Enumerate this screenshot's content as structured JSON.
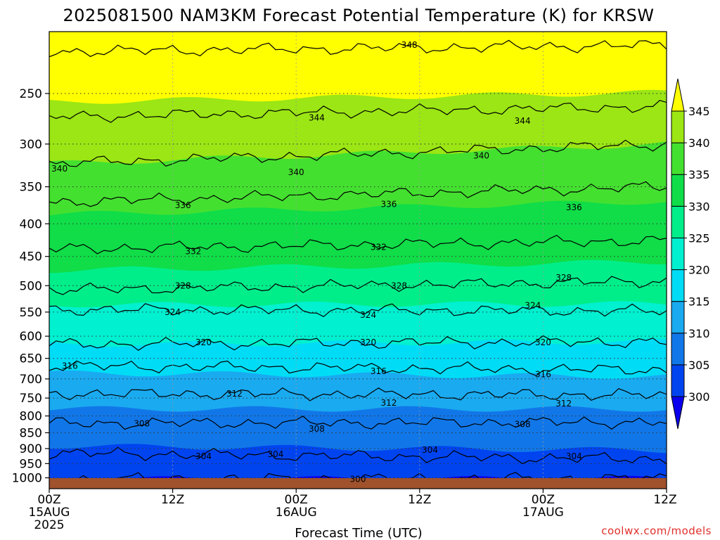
{
  "chart_data": {
    "type": "heatmap",
    "title": "2025081500 NAM3KM Forecast Potential Temperature (K) for KRSW",
    "xlabel": "Forecast Time (UTC)",
    "ylabel": "",
    "credit": "coolwx.com/models",
    "x_ticks": [
      {
        "hour": 0,
        "lines": [
          "00Z",
          "15AUG",
          "2025"
        ]
      },
      {
        "hour": 12,
        "lines": [
          "12Z"
        ]
      },
      {
        "hour": 24,
        "lines": [
          "00Z",
          "16AUG"
        ]
      },
      {
        "hour": 36,
        "lines": [
          "12Z"
        ]
      },
      {
        "hour": 48,
        "lines": [
          "00Z",
          "17AUG"
        ]
      },
      {
        "hour": 60,
        "lines": [
          "12Z"
        ]
      }
    ],
    "xlim": [
      0,
      60
    ],
    "y_scale": "log",
    "ylim": [
      1040,
      200
    ],
    "y_ticks": [
      250,
      300,
      350,
      400,
      450,
      500,
      550,
      600,
      650,
      700,
      750,
      800,
      850,
      900,
      950,
      1000
    ],
    "colorbar": {
      "levels": [
        300,
        305,
        310,
        315,
        320,
        325,
        330,
        335,
        340,
        345
      ],
      "colors": [
        "#0a00ee",
        "#0044f0",
        "#1177e8",
        "#1aaaf0",
        "#00dcf6",
        "#00f0d0",
        "#00ee8a",
        "#10dd48",
        "#44e030",
        "#9be614",
        "#ffff00"
      ],
      "extend": "both"
    },
    "isotherms": [
      {
        "theta": 300,
        "p_start": 1005,
        "p_end": 1003
      },
      {
        "theta": 304,
        "p_start": 915,
        "p_end": 935
      },
      {
        "theta": 308,
        "p_start": 822,
        "p_end": 818
      },
      {
        "theta": 312,
        "p_start": 738,
        "p_end": 742
      },
      {
        "theta": 316,
        "p_start": 668,
        "p_end": 678
      },
      {
        "theta": 320,
        "p_start": 618,
        "p_end": 612
      },
      {
        "theta": 324,
        "p_start": 545,
        "p_end": 548
      },
      {
        "theta": 328,
        "p_start": 508,
        "p_end": 492
      },
      {
        "theta": 332,
        "p_start": 438,
        "p_end": 425
      },
      {
        "theta": 336,
        "p_start": 370,
        "p_end": 350
      },
      {
        "theta": 340,
        "p_start": 322,
        "p_end": 300
      },
      {
        "theta": 344,
        "p_start": 272,
        "p_end": 262
      },
      {
        "theta": 348,
        "p_start": 215,
        "p_end": 210
      }
    ],
    "contour_labels": [
      {
        "text": "348",
        "hour": 35,
        "p": 210
      },
      {
        "text": "344",
        "hour": 26,
        "p": 273
      },
      {
        "text": "344",
        "hour": 46,
        "p": 276
      },
      {
        "text": "340",
        "hour": 1,
        "p": 328
      },
      {
        "text": "340",
        "hour": 24,
        "p": 332
      },
      {
        "text": "340",
        "hour": 42,
        "p": 313
      },
      {
        "text": "336",
        "hour": 13,
        "p": 374
      },
      {
        "text": "336",
        "hour": 33,
        "p": 373
      },
      {
        "text": "336",
        "hour": 51,
        "p": 377
      },
      {
        "text": "332",
        "hour": 14,
        "p": 442
      },
      {
        "text": "332",
        "hour": 32,
        "p": 435
      },
      {
        "text": "328",
        "hour": 13,
        "p": 500
      },
      {
        "text": "328",
        "hour": 34,
        "p": 500
      },
      {
        "text": "328",
        "hour": 50,
        "p": 486
      },
      {
        "text": "324",
        "hour": 12,
        "p": 550
      },
      {
        "text": "324",
        "hour": 31,
        "p": 556
      },
      {
        "text": "324",
        "hour": 47,
        "p": 537
      },
      {
        "text": "320",
        "hour": 15,
        "p": 614
      },
      {
        "text": "320",
        "hour": 31,
        "p": 614
      },
      {
        "text": "320",
        "hour": 48,
        "p": 614
      },
      {
        "text": "316",
        "hour": 2,
        "p": 668
      },
      {
        "text": "316",
        "hour": 32,
        "p": 681
      },
      {
        "text": "316",
        "hour": 48,
        "p": 689
      },
      {
        "text": "312",
        "hour": 18,
        "p": 738
      },
      {
        "text": "312",
        "hour": 33,
        "p": 763
      },
      {
        "text": "312",
        "hour": 50,
        "p": 765
      },
      {
        "text": "308",
        "hour": 9,
        "p": 822
      },
      {
        "text": "308",
        "hour": 26,
        "p": 838
      },
      {
        "text": "308",
        "hour": 46,
        "p": 825
      },
      {
        "text": "304",
        "hour": 15,
        "p": 925
      },
      {
        "text": "304",
        "hour": 22,
        "p": 918
      },
      {
        "text": "304",
        "hour": 37,
        "p": 905
      },
      {
        "text": "304",
        "hour": 51,
        "p": 925
      },
      {
        "text": "300",
        "hour": 30,
        "p": 1005
      }
    ]
  }
}
